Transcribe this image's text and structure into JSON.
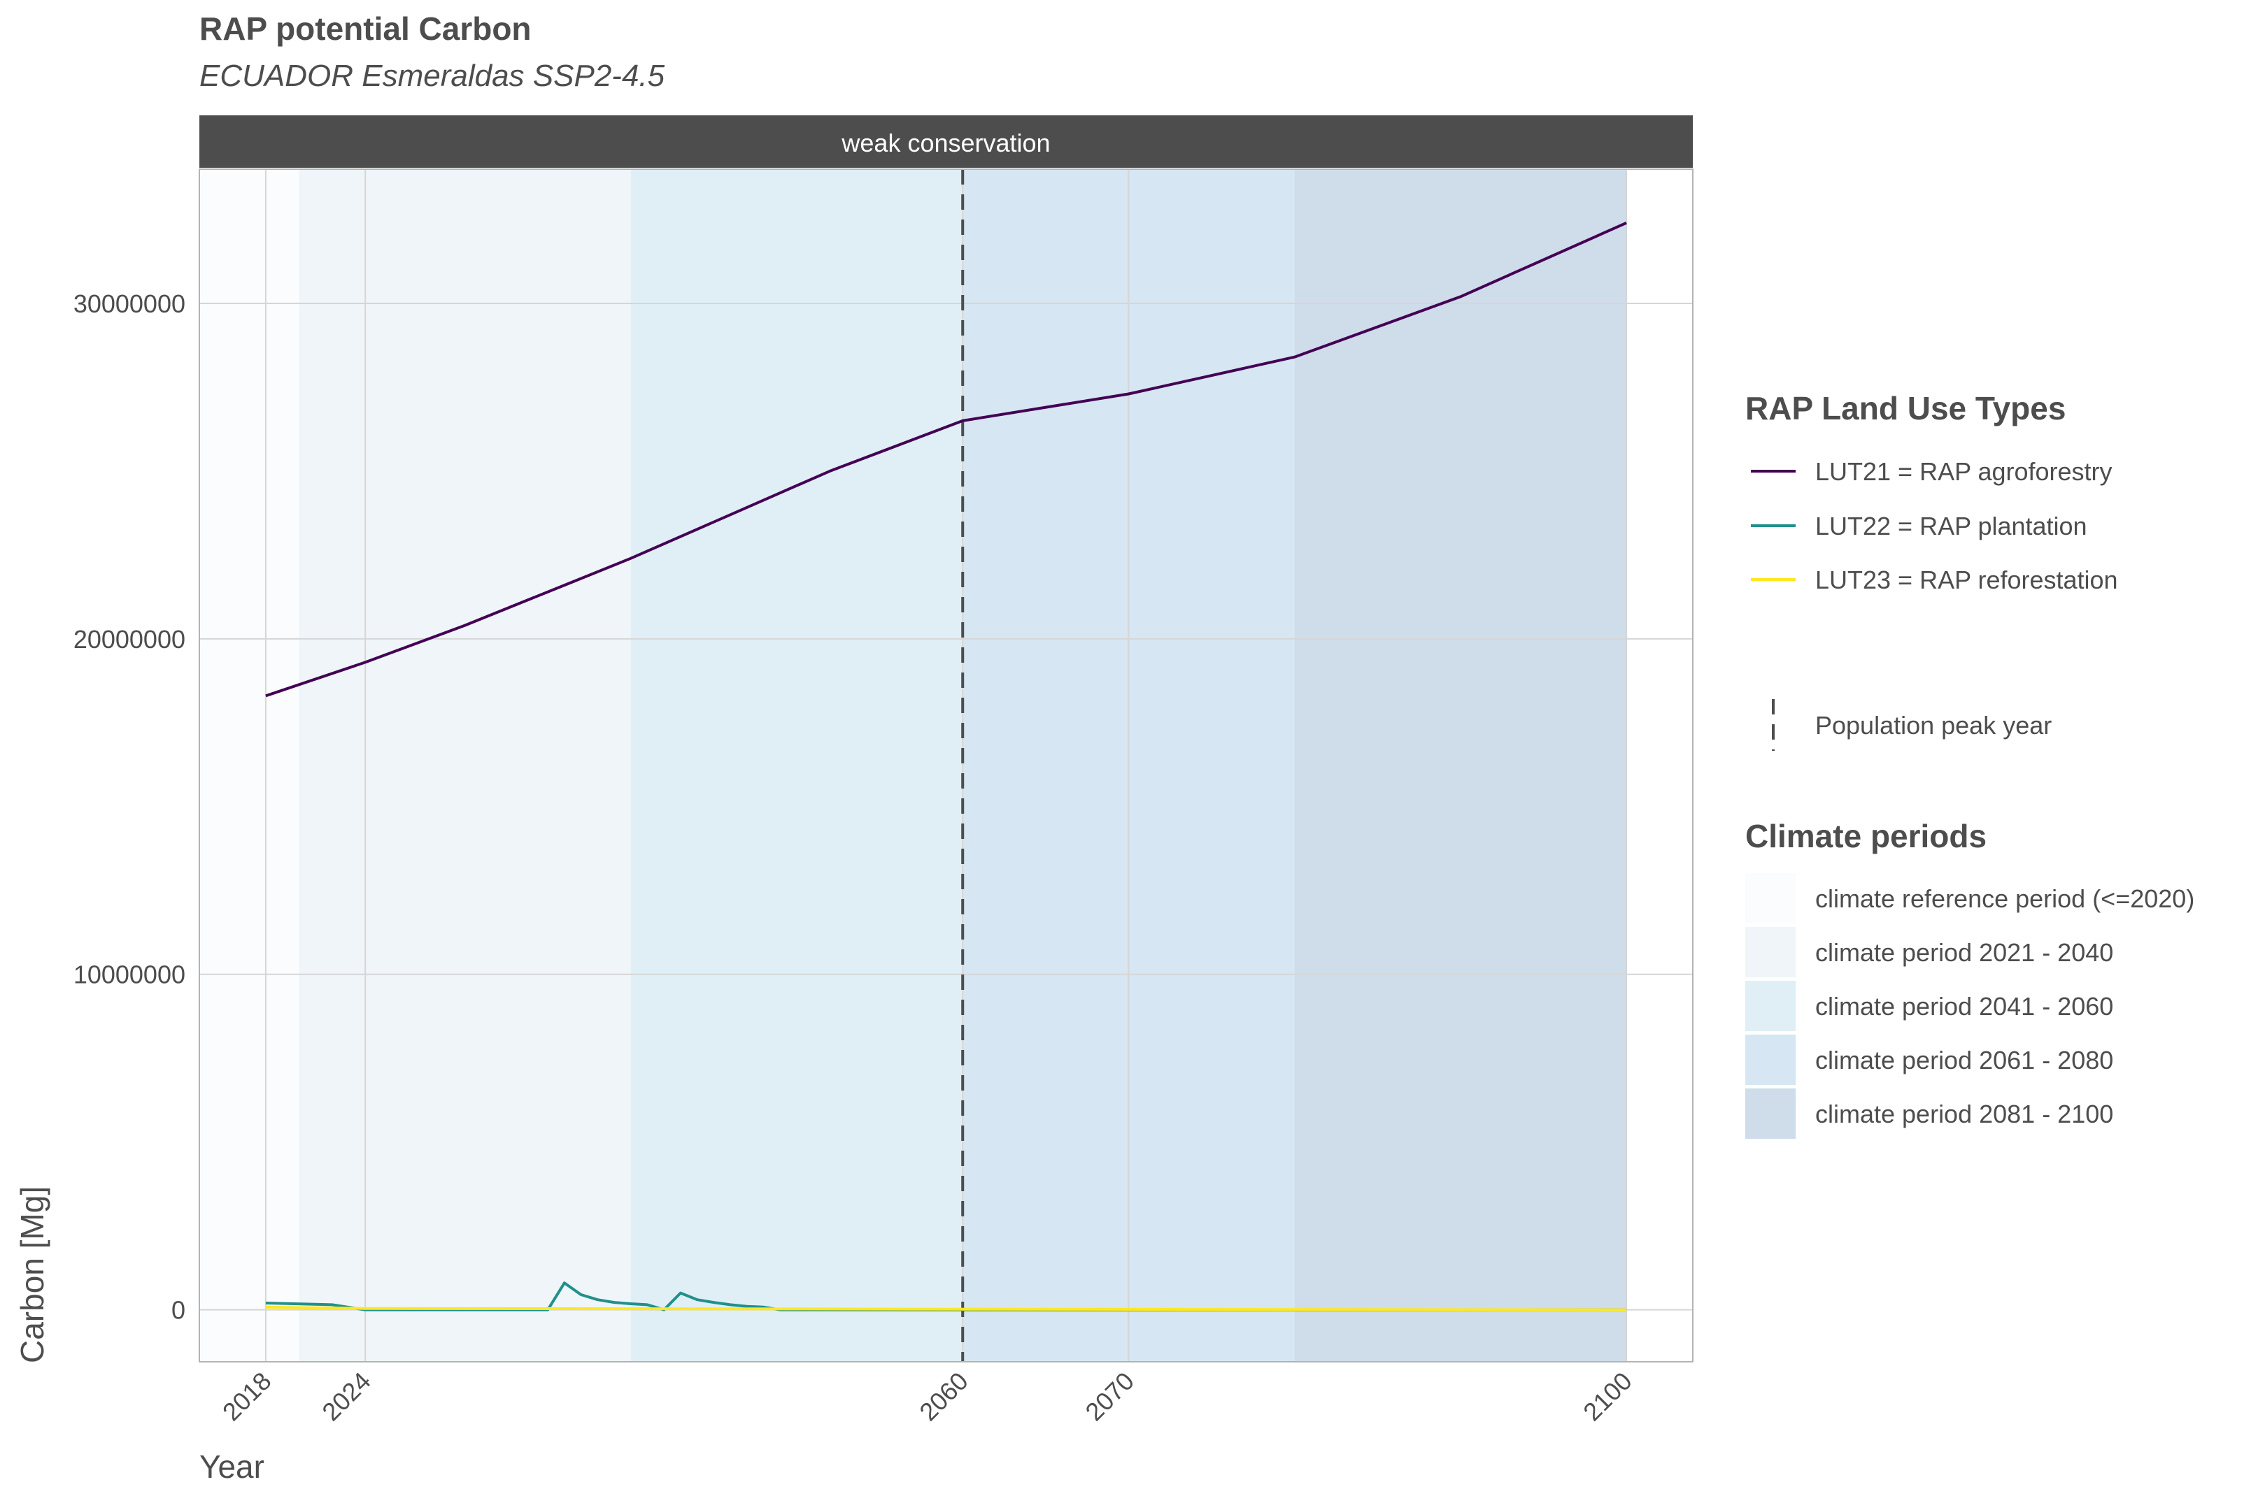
{
  "chart_data": {
    "type": "line",
    "title": "RAP potential Carbon",
    "subtitle": "ECUADOR Esmeraldas SSP2-4.5",
    "facet_label": "weak conservation",
    "xlabel": "Year",
    "ylabel": "Carbon [Mg]",
    "xlim": [
      2014,
      2104
    ],
    "ylim": [
      -1550000,
      34000000
    ],
    "x_ticks": [
      2018,
      2024,
      2060,
      2070,
      2100
    ],
    "y_ticks": [
      0,
      10000000,
      20000000,
      30000000
    ],
    "y_tick_labels": [
      "0",
      "10000000",
      "20000000",
      "30000000"
    ],
    "grid": true,
    "legend_position": "right",
    "series": [
      {
        "name": "LUT21 = RAP agroforestry",
        "color": "#440154",
        "x": [
          2018,
          2024,
          2030,
          2036,
          2040,
          2046,
          2052,
          2060,
          2070,
          2080,
          2090,
          2100
        ],
        "y": [
          18300000,
          19300000,
          20400000,
          21600000,
          22400000,
          23700000,
          25000000,
          26500000,
          27300000,
          28400000,
          30200000,
          32400000
        ]
      },
      {
        "name": "LUT22 = RAP plantation",
        "color": "#21908C",
        "x": [
          2018,
          2022,
          2024,
          2030,
          2035,
          2036,
          2037,
          2038,
          2039,
          2040,
          2041,
          2042,
          2043,
          2044,
          2045,
          2046,
          2047,
          2048,
          2049,
          2050,
          2100
        ],
        "y": [
          200000,
          150000,
          0,
          0,
          0,
          800000,
          450000,
          300000,
          220000,
          180000,
          150000,
          0,
          500000,
          300000,
          220000,
          150000,
          100000,
          80000,
          0,
          0,
          0
        ]
      },
      {
        "name": "LUT23 = RAP reforestation",
        "color": "#FDE725",
        "x": [
          2018,
          2024,
          2060,
          2100
        ],
        "y": [
          80000,
          40000,
          20000,
          0
        ]
      }
    ],
    "reference_line": {
      "name": "Population peak year",
      "x": 2060,
      "style": "dashed",
      "color": "#4d4d4d"
    },
    "climate_periods_title": "Climate periods",
    "climate_periods": [
      {
        "label": "climate reference period (<=2020)",
        "start": 2014,
        "end": 2020,
        "color": "#fbfcfd"
      },
      {
        "label": "climate period 2021 - 2040",
        "start": 2020,
        "end": 2040,
        "color": "#eff5f9"
      },
      {
        "label": "climate period 2041 - 2060",
        "start": 2040,
        "end": 2060,
        "color": "#e0eff6"
      },
      {
        "label": "climate period 2061 - 2080",
        "start": 2060,
        "end": 2080,
        "color": "#d6e6f2"
      },
      {
        "label": "climate period 2081 - 2100",
        "start": 2080,
        "end": 2100,
        "color": "#cfdcea"
      }
    ],
    "legend_title": "RAP Land Use Types"
  }
}
